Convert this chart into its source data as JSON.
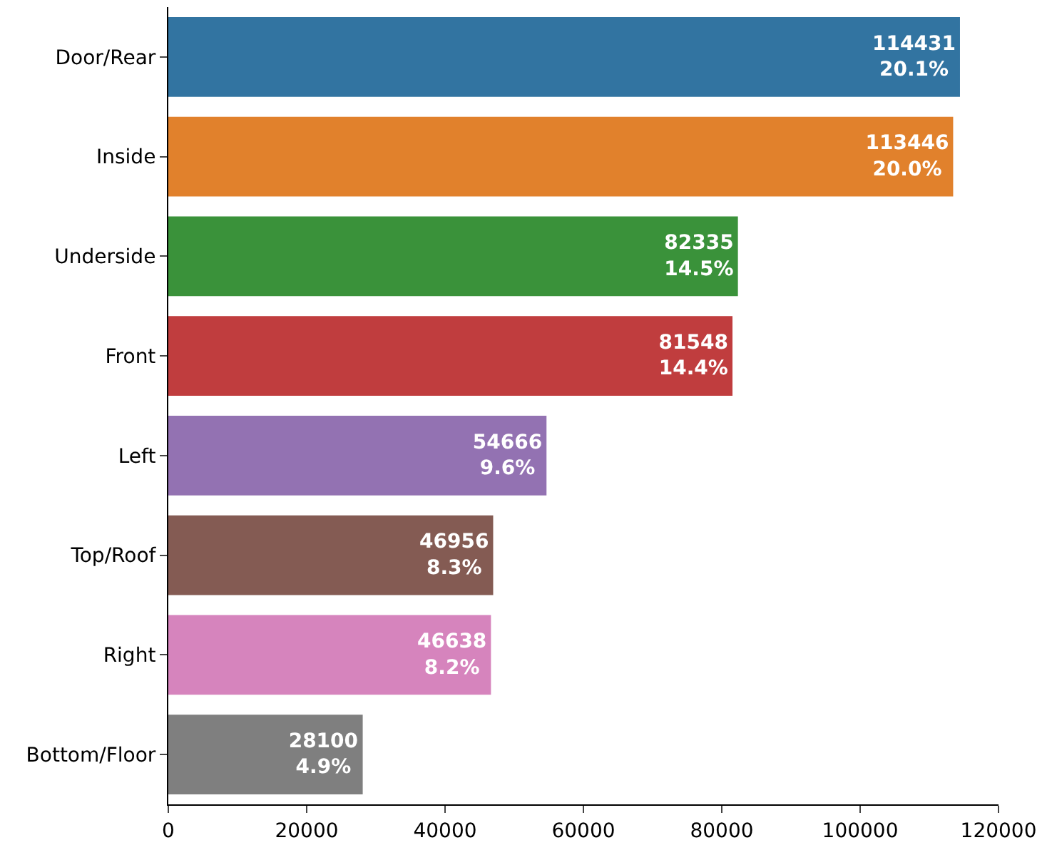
{
  "chart_data": {
    "type": "bar",
    "orientation": "horizontal",
    "categories": [
      "Door/Rear",
      "Inside",
      "Underside",
      "Front",
      "Left",
      "Top/Roof",
      "Right",
      "Bottom/Floor"
    ],
    "values": [
      114431,
      113446,
      82335,
      81548,
      54666,
      46956,
      46638,
      28100
    ],
    "value_labels": [
      "114431\n20.1%",
      "113446\n20.0%",
      "82335\n14.5%",
      "81548\n14.4%",
      "54666\n9.6%",
      "46956\n8.3%",
      "46638\n8.2%",
      "28100\n4.9%"
    ],
    "colors": [
      "#3274a1",
      "#e1812c",
      "#3a923a",
      "#c03d3e",
      "#9372b2",
      "#845b53",
      "#d684bd",
      "#7f7f7f"
    ],
    "xlim": [
      0,
      120000
    ],
    "xticks": [
      0,
      20000,
      40000,
      60000,
      80000,
      100000,
      120000
    ],
    "legend": false
  }
}
